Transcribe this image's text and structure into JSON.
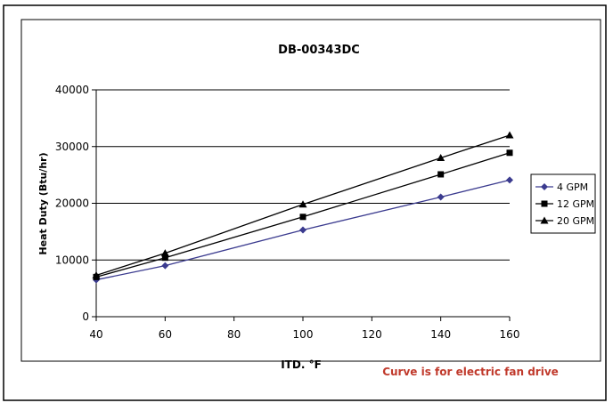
{
  "chart_data": {
    "type": "line",
    "title": "DB-00343DC",
    "xlabel": "ITD. °F",
    "ylabel": "Heat Duty (Btu/hr)",
    "note": "Curve is for electric fan drive",
    "xlim": [
      40,
      160
    ],
    "ylim": [
      0,
      40000
    ],
    "x_ticks": [
      40,
      60,
      80,
      100,
      120,
      140,
      160
    ],
    "y_ticks": [
      0,
      10000,
      20000,
      30000,
      40000
    ],
    "grid": "horizontal",
    "legend_position": "right",
    "series": [
      {
        "name": "4 GPM",
        "marker": "diamond",
        "color": "#3b3b8f",
        "x": [
          40,
          60,
          100,
          140,
          160
        ],
        "y": [
          6500,
          9000,
          15300,
          21100,
          24100
        ]
      },
      {
        "name": "12 GPM",
        "marker": "square",
        "color": "#000000",
        "x": [
          40,
          60,
          100,
          140,
          160
        ],
        "y": [
          7000,
          10400,
          17600,
          25100,
          28900
        ]
      },
      {
        "name": "20 GPM",
        "marker": "triangle",
        "color": "#000000",
        "x": [
          40,
          60,
          100,
          140,
          160
        ],
        "y": [
          7300,
          11200,
          19800,
          28000,
          32000
        ]
      }
    ],
    "note_color": "#c0392b"
  }
}
